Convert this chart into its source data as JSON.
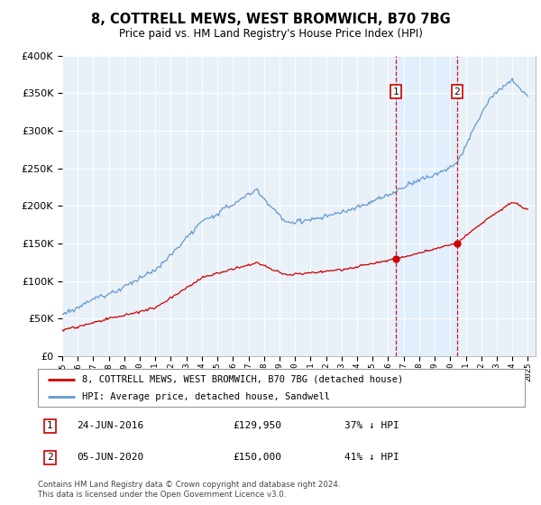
{
  "title": "8, COTTRELL MEWS, WEST BROMWICH, B70 7BG",
  "subtitle": "Price paid vs. HM Land Registry's House Price Index (HPI)",
  "legend_line1": "8, COTTRELL MEWS, WEST BROMWICH, B70 7BG (detached house)",
  "legend_line2": "HPI: Average price, detached house, Sandwell",
  "sale1_date": "24-JUN-2016",
  "sale1_price": 129950,
  "sale1_year": 2016.48,
  "sale2_date": "05-JUN-2020",
  "sale2_price": 150000,
  "sale2_year": 2020.43,
  "footnote": "Contains HM Land Registry data © Crown copyright and database right 2024.\nThis data is licensed under the Open Government Licence v3.0.",
  "ylim": [
    0,
    400000
  ],
  "xlim_start": 1995,
  "xlim_end": 2025.5,
  "red_color": "#cc0000",
  "blue_color": "#6699cc",
  "blue_shade": "#ddeeff",
  "background_color": "#ffffff",
  "plot_bg_color": "#e8f0f8"
}
